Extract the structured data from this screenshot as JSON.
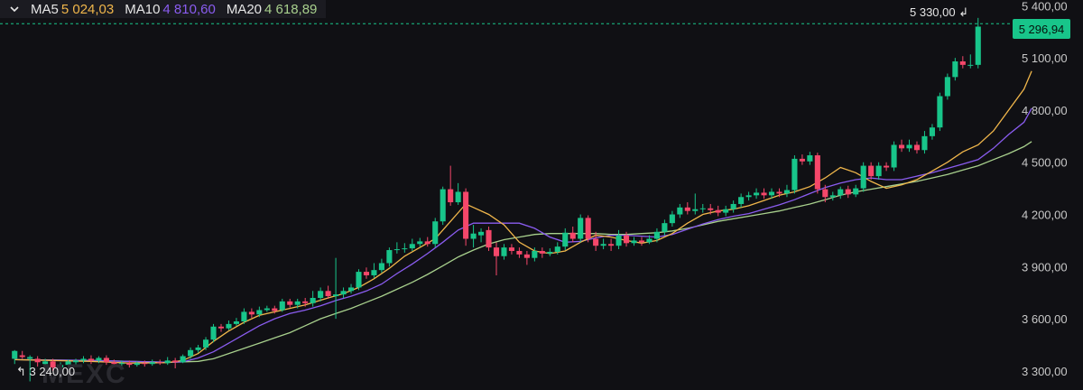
{
  "legend": {
    "items": [
      {
        "name": "MA5",
        "value": "5 024,03",
        "color": "#f0b64b"
      },
      {
        "name": "MA10",
        "value": "4 810,60",
        "color": "#8a5cf0"
      },
      {
        "name": "MA20",
        "value": "4 618,89",
        "color": "#a8d08d"
      }
    ]
  },
  "current_price_label": "5 296,94",
  "high_annotation": "5 330,00",
  "low_annotation": "3 240,00",
  "watermark_text": "MEXC",
  "colors": {
    "up": "#18c58a",
    "down": "#f5476a",
    "current_line": "#18c58a"
  },
  "chart_data": {
    "type": "candlestick",
    "y_ticks": [
      "5 400,00",
      "5 100,00",
      "4 800,00",
      "4 500,00",
      "4 200,00",
      "3 900,00",
      "3 600,00",
      "3 300,00"
    ],
    "y_tick_values": [
      5400,
      5100,
      4800,
      4500,
      4200,
      3900,
      3600,
      3300
    ],
    "ylim": [
      3232,
      5433
    ],
    "current_price": 5296.94,
    "high": 5330.0,
    "low": 3240.0,
    "candles": [
      [
        3370,
        3415,
        3420,
        3340
      ],
      [
        3390,
        3380,
        3415,
        3370
      ],
      [
        3370,
        3380,
        3390,
        3240
      ],
      [
        3370,
        3350,
        3385,
        3325
      ],
      [
        3340,
        3355,
        3370,
        3320
      ],
      [
        3355,
        3320,
        3370,
        3300
      ],
      [
        3320,
        3335,
        3350,
        3300
      ],
      [
        3335,
        3355,
        3365,
        3320
      ],
      [
        3350,
        3360,
        3370,
        3335
      ],
      [
        3360,
        3370,
        3385,
        3345
      ],
      [
        3370,
        3360,
        3390,
        3340
      ],
      [
        3360,
        3375,
        3385,
        3345
      ],
      [
        3375,
        3350,
        3390,
        3335
      ],
      [
        3350,
        3340,
        3365,
        3325
      ],
      [
        3340,
        3345,
        3360,
        3325
      ],
      [
        3345,
        3335,
        3360,
        3320
      ],
      [
        3335,
        3345,
        3355,
        3325
      ],
      [
        3345,
        3340,
        3360,
        3325
      ],
      [
        3340,
        3350,
        3365,
        3330
      ],
      [
        3350,
        3345,
        3365,
        3335
      ],
      [
        3345,
        3360,
        3380,
        3335
      ],
      [
        3360,
        3350,
        3375,
        3315
      ],
      [
        3350,
        3385,
        3395,
        3345
      ],
      [
        3385,
        3420,
        3435,
        3370
      ],
      [
        3420,
        3435,
        3450,
        3405
      ],
      [
        3435,
        3480,
        3495,
        3420
      ],
      [
        3480,
        3555,
        3570,
        3465
      ],
      [
        3555,
        3545,
        3570,
        3525
      ],
      [
        3545,
        3570,
        3590,
        3535
      ],
      [
        3570,
        3585,
        3605,
        3560
      ],
      [
        3585,
        3640,
        3660,
        3570
      ],
      [
        3640,
        3625,
        3660,
        3605
      ],
      [
        3625,
        3650,
        3670,
        3610
      ],
      [
        3650,
        3660,
        3675,
        3640
      ],
      [
        3660,
        3645,
        3675,
        3630
      ],
      [
        3650,
        3700,
        3715,
        3640
      ],
      [
        3700,
        3680,
        3715,
        3665
      ],
      [
        3680,
        3700,
        3715,
        3660
      ],
      [
        3700,
        3690,
        3720,
        3670
      ],
      [
        3690,
        3720,
        3760,
        3670
      ],
      [
        3720,
        3760,
        3780,
        3700
      ],
      [
        3760,
        3730,
        3790,
        3715
      ],
      [
        3730,
        3740,
        3950,
        3600
      ],
      [
        3740,
        3760,
        3780,
        3720
      ],
      [
        3760,
        3780,
        3800,
        3745
      ],
      [
        3780,
        3870,
        3885,
        3765
      ],
      [
        3870,
        3850,
        3895,
        3830
      ],
      [
        3850,
        3880,
        3920,
        3835
      ],
      [
        3880,
        3920,
        3945,
        3865
      ],
      [
        3920,
        3995,
        4010,
        3900
      ],
      [
        3995,
        4000,
        4040,
        3975
      ],
      [
        4000,
        4005,
        4035,
        3980
      ],
      [
        4005,
        4030,
        4060,
        3990
      ],
      [
        4030,
        4045,
        4065,
        4015
      ],
      [
        4045,
        4030,
        4070,
        4015
      ],
      [
        4030,
        4160,
        4180,
        4010
      ],
      [
        4160,
        4345,
        4360,
        4140
      ],
      [
        4345,
        4270,
        4480,
        4250
      ],
      [
        4270,
        4330,
        4380,
        4255
      ],
      [
        4330,
        4060,
        4350,
        4020
      ],
      [
        4060,
        4090,
        4140,
        4010
      ],
      [
        4080,
        4100,
        4120,
        4040
      ],
      [
        4110,
        4010,
        4130,
        3990
      ],
      [
        4010,
        3960,
        4040,
        3850
      ],
      [
        3960,
        4010,
        4030,
        3940
      ],
      [
        4010,
        3990,
        4030,
        3970
      ],
      [
        3990,
        3970,
        4010,
        3950
      ],
      [
        3970,
        3950,
        3990,
        3910
      ],
      [
        3950,
        3990,
        4010,
        3930
      ],
      [
        3990,
        3975,
        4010,
        3950
      ],
      [
        3975,
        3985,
        4005,
        3960
      ],
      [
        3985,
        4015,
        4040,
        3970
      ],
      [
        4015,
        4095,
        4120,
        3995
      ],
      [
        4095,
        4060,
        4130,
        4040
      ],
      [
        4060,
        4180,
        4200,
        4040
      ],
      [
        4180,
        4060,
        4195,
        4040
      ],
      [
        4060,
        4020,
        4100,
        3990
      ],
      [
        4020,
        4030,
        4060,
        4000
      ],
      [
        4030,
        4020,
        4060,
        3990
      ],
      [
        4020,
        4080,
        4110,
        4000
      ],
      [
        4080,
        4035,
        4100,
        4015
      ],
      [
        4035,
        4050,
        4070,
        4020
      ],
      [
        4050,
        4040,
        4070,
        4020
      ],
      [
        4040,
        4060,
        4080,
        4030
      ],
      [
        4060,
        4100,
        4120,
        4040
      ],
      [
        4100,
        4150,
        4170,
        4080
      ],
      [
        4150,
        4200,
        4220,
        4130
      ],
      [
        4200,
        4240,
        4260,
        4180
      ],
      [
        4240,
        4220,
        4270,
        4200
      ],
      [
        4220,
        4230,
        4320,
        4200
      ],
      [
        4230,
        4235,
        4260,
        4210
      ],
      [
        4235,
        4225,
        4260,
        4200
      ],
      [
        4225,
        4210,
        4250,
        4190
      ],
      [
        4210,
        4230,
        4250,
        4190
      ],
      [
        4230,
        4260,
        4280,
        4210
      ],
      [
        4260,
        4300,
        4320,
        4240
      ],
      [
        4300,
        4310,
        4330,
        4280
      ],
      [
        4310,
        4325,
        4350,
        4290
      ],
      [
        4325,
        4310,
        4350,
        4290
      ],
      [
        4310,
        4330,
        4350,
        4290
      ],
      [
        4330,
        4320,
        4350,
        4300
      ],
      [
        4320,
        4340,
        4370,
        4300
      ],
      [
        4340,
        4520,
        4540,
        4320
      ],
      [
        4520,
        4505,
        4545,
        4485
      ],
      [
        4505,
        4540,
        4560,
        4485
      ],
      [
        4540,
        4345,
        4555,
        4320
      ],
      [
        4345,
        4300,
        4370,
        4270
      ],
      [
        4300,
        4310,
        4330,
        4280
      ],
      [
        4310,
        4345,
        4360,
        4290
      ],
      [
        4345,
        4315,
        4365,
        4295
      ],
      [
        4315,
        4350,
        4370,
        4300
      ],
      [
        4350,
        4480,
        4500,
        4330
      ],
      [
        4480,
        4420,
        4500,
        4400
      ],
      [
        4420,
        4480,
        4500,
        4400
      ],
      [
        4480,
        4470,
        4500,
        4450
      ],
      [
        4470,
        4600,
        4620,
        4450
      ],
      [
        4600,
        4580,
        4630,
        4560
      ],
      [
        4580,
        4600,
        4630,
        4560
      ],
      [
        4600,
        4570,
        4620,
        4550
      ],
      [
        4570,
        4650,
        4680,
        4550
      ],
      [
        4650,
        4700,
        4720,
        4630
      ],
      [
        4700,
        4880,
        4900,
        4680
      ],
      [
        4880,
        4990,
        5010,
        4860
      ],
      [
        4990,
        5080,
        5100,
        4970
      ],
      [
        5080,
        5060,
        5110,
        5040
      ],
      [
        5060,
        5060,
        5120,
        5040
      ],
      [
        5060,
        5280,
        5330,
        5040
      ]
    ],
    "ma5": [
      [
        0,
        3365
      ],
      [
        5,
        3360
      ],
      [
        10,
        3355
      ],
      [
        15,
        3345
      ],
      [
        20,
        3348
      ],
      [
        22,
        3360
      ],
      [
        24,
        3400
      ],
      [
        26,
        3470
      ],
      [
        28,
        3530
      ],
      [
        30,
        3580
      ],
      [
        32,
        3620
      ],
      [
        35,
        3650
      ],
      [
        38,
        3680
      ],
      [
        41,
        3720
      ],
      [
        43,
        3745
      ],
      [
        45,
        3780
      ],
      [
        47,
        3830
      ],
      [
        49,
        3890
      ],
      [
        51,
        3960
      ],
      [
        53,
        4010
      ],
      [
        55,
        4060
      ],
      [
        57,
        4160
      ],
      [
        59,
        4260
      ],
      [
        60,
        4240
      ],
      [
        62,
        4200
      ],
      [
        64,
        4140
      ],
      [
        66,
        4040
      ],
      [
        68,
        3990
      ],
      [
        70,
        3975
      ],
      [
        72,
        3990
      ],
      [
        74,
        4040
      ],
      [
        76,
        4080
      ],
      [
        78,
        4070
      ],
      [
        80,
        4050
      ],
      [
        82,
        4035
      ],
      [
        84,
        4050
      ],
      [
        86,
        4090
      ],
      [
        88,
        4150
      ],
      [
        90,
        4200
      ],
      [
        92,
        4220
      ],
      [
        94,
        4230
      ],
      [
        96,
        4250
      ],
      [
        98,
        4280
      ],
      [
        100,
        4310
      ],
      [
        102,
        4330
      ],
      [
        104,
        4360
      ],
      [
        106,
        4410
      ],
      [
        108,
        4470
      ],
      [
        110,
        4440
      ],
      [
        112,
        4390
      ],
      [
        114,
        4350
      ],
      [
        116,
        4370
      ],
      [
        118,
        4400
      ],
      [
        120,
        4450
      ],
      [
        122,
        4500
      ],
      [
        124,
        4560
      ],
      [
        126,
        4600
      ],
      [
        128,
        4680
      ],
      [
        130,
        4800
      ],
      [
        132,
        4920
      ],
      [
        133,
        5024
      ]
    ],
    "ma10": [
      [
        0,
        3365
      ],
      [
        10,
        3360
      ],
      [
        20,
        3350
      ],
      [
        22,
        3352
      ],
      [
        24,
        3375
      ],
      [
        26,
        3410
      ],
      [
        28,
        3460
      ],
      [
        30,
        3510
      ],
      [
        32,
        3560
      ],
      [
        34,
        3600
      ],
      [
        36,
        3630
      ],
      [
        38,
        3650
      ],
      [
        40,
        3675
      ],
      [
        42,
        3705
      ],
      [
        44,
        3730
      ],
      [
        46,
        3760
      ],
      [
        48,
        3800
      ],
      [
        50,
        3860
      ],
      [
        52,
        3915
      ],
      [
        54,
        3975
      ],
      [
        56,
        4040
      ],
      [
        58,
        4110
      ],
      [
        60,
        4150
      ],
      [
        62,
        4150
      ],
      [
        64,
        4150
      ],
      [
        66,
        4150
      ],
      [
        68,
        4120
      ],
      [
        70,
        4070
      ],
      [
        72,
        4040
      ],
      [
        74,
        4045
      ],
      [
        76,
        4065
      ],
      [
        78,
        4080
      ],
      [
        80,
        4080
      ],
      [
        82,
        4075
      ],
      [
        84,
        4070
      ],
      [
        86,
        4085
      ],
      [
        88,
        4115
      ],
      [
        90,
        4145
      ],
      [
        92,
        4170
      ],
      [
        94,
        4190
      ],
      [
        96,
        4205
      ],
      [
        98,
        4230
      ],
      [
        100,
        4255
      ],
      [
        102,
        4285
      ],
      [
        104,
        4320
      ],
      [
        106,
        4355
      ],
      [
        108,
        4380
      ],
      [
        110,
        4400
      ],
      [
        112,
        4410
      ],
      [
        114,
        4400
      ],
      [
        116,
        4400
      ],
      [
        118,
        4420
      ],
      [
        120,
        4440
      ],
      [
        122,
        4465
      ],
      [
        124,
        4490
      ],
      [
        126,
        4515
      ],
      [
        128,
        4580
      ],
      [
        130,
        4660
      ],
      [
        132,
        4730
      ],
      [
        133,
        4810
      ]
    ],
    "ma20": [
      [
        0,
        3365
      ],
      [
        10,
        3360
      ],
      [
        20,
        3350
      ],
      [
        24,
        3355
      ],
      [
        26,
        3370
      ],
      [
        28,
        3400
      ],
      [
        30,
        3430
      ],
      [
        32,
        3460
      ],
      [
        34,
        3490
      ],
      [
        36,
        3520
      ],
      [
        38,
        3560
      ],
      [
        40,
        3600
      ],
      [
        42,
        3630
      ],
      [
        44,
        3660
      ],
      [
        46,
        3695
      ],
      [
        48,
        3730
      ],
      [
        50,
        3770
      ],
      [
        52,
        3810
      ],
      [
        54,
        3855
      ],
      [
        56,
        3905
      ],
      [
        58,
        3955
      ],
      [
        60,
        3995
      ],
      [
        62,
        4030
      ],
      [
        64,
        4055
      ],
      [
        66,
        4070
      ],
      [
        68,
        4085
      ],
      [
        70,
        4090
      ],
      [
        72,
        4090
      ],
      [
        74,
        4090
      ],
      [
        76,
        4090
      ],
      [
        78,
        4085
      ],
      [
        80,
        4085
      ],
      [
        82,
        4090
      ],
      [
        84,
        4095
      ],
      [
        86,
        4105
      ],
      [
        88,
        4120
      ],
      [
        90,
        4140
      ],
      [
        92,
        4160
      ],
      [
        94,
        4175
      ],
      [
        96,
        4190
      ],
      [
        98,
        4205
      ],
      [
        100,
        4220
      ],
      [
        102,
        4240
      ],
      [
        104,
        4260
      ],
      [
        106,
        4285
      ],
      [
        108,
        4310
      ],
      [
        110,
        4330
      ],
      [
        112,
        4345
      ],
      [
        114,
        4360
      ],
      [
        116,
        4375
      ],
      [
        118,
        4390
      ],
      [
        120,
        4410
      ],
      [
        122,
        4430
      ],
      [
        124,
        4455
      ],
      [
        126,
        4480
      ],
      [
        128,
        4515
      ],
      [
        130,
        4550
      ],
      [
        132,
        4590
      ],
      [
        133,
        4619
      ]
    ]
  }
}
